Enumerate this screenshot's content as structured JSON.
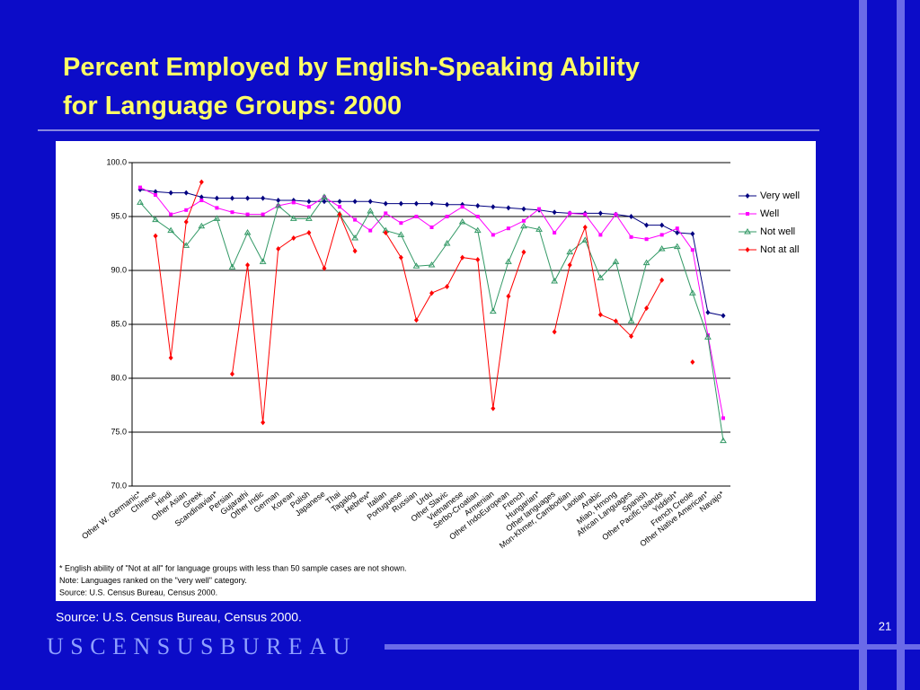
{
  "chart_data": {
    "type": "line",
    "title": "Percent Employed by English-Speaking Ability for Language Groups: 2000",
    "categories": [
      "Other W. Germanic*",
      "Chinese",
      "Hindi",
      "Other Asian",
      "Greek",
      "Scandinavian*",
      "Persian",
      "Gujarathi",
      "Other Indic",
      "German",
      "Korean",
      "Polish",
      "Japanese",
      "Thai",
      "Tagalog",
      "Hebrew*",
      "Italian",
      "Portuguese",
      "Russian",
      "Urdu",
      "Other Slavic",
      "Vietnamese",
      "Serbo-Croatian",
      "Armenian",
      "Other IndoEuropean",
      "French",
      "Hungarian*",
      "Other languages",
      "Mon-Khmer, Cambodian",
      "Laotian",
      "Arabic",
      "Miao, Hmong",
      "African Languages",
      "Spanish",
      "Other Pacific Islands",
      "Yiddish*",
      "French Creole",
      "Other Native American*",
      "Navajo*"
    ],
    "series": [
      {
        "name": "Very well",
        "color": "#000080",
        "marker": "diamond",
        "values": [
          97.5,
          97.3,
          97.2,
          97.2,
          96.8,
          96.7,
          96.7,
          96.7,
          96.7,
          96.5,
          96.5,
          96.4,
          96.4,
          96.4,
          96.4,
          96.4,
          96.2,
          96.2,
          96.2,
          96.2,
          96.1,
          96.1,
          96.0,
          95.9,
          95.8,
          95.7,
          95.6,
          95.4,
          95.3,
          95.3,
          95.3,
          95.2,
          95.0,
          94.2,
          94.2,
          93.5,
          93.4,
          86.1,
          85.8
        ]
      },
      {
        "name": "Well",
        "color": "#ff00ff",
        "marker": "square",
        "values": [
          97.7,
          97.0,
          95.2,
          95.6,
          96.5,
          95.8,
          95.4,
          95.2,
          95.2,
          96.0,
          96.3,
          95.9,
          96.8,
          95.9,
          94.7,
          93.7,
          95.3,
          94.4,
          95.0,
          94.0,
          95.0,
          95.9,
          95.0,
          93.3,
          93.9,
          94.6,
          95.7,
          93.5,
          95.3,
          95.2,
          93.3,
          95.2,
          93.1,
          92.9,
          93.3,
          93.9,
          91.9,
          84.0,
          76.3
        ]
      },
      {
        "name": "Not well",
        "color": "#339966",
        "marker": "triangle",
        "values": [
          96.3,
          94.7,
          93.7,
          92.3,
          94.1,
          94.8,
          90.3,
          93.5,
          90.8,
          96.0,
          94.8,
          94.8,
          96.8,
          95.2,
          93.0,
          95.5,
          93.7,
          93.3,
          90.4,
          90.5,
          92.5,
          94.5,
          93.7,
          86.2,
          90.8,
          94.1,
          93.8,
          89.0,
          91.7,
          92.8,
          89.3,
          90.8,
          85.3,
          90.7,
          92.0,
          92.2,
          87.9,
          83.8,
          74.2
        ]
      },
      {
        "name": "Not at all",
        "color": "#ff0000",
        "marker": "diamond",
        "values": [
          null,
          93.2,
          81.9,
          94.5,
          98.2,
          null,
          80.4,
          90.5,
          75.9,
          92.0,
          93.0,
          93.5,
          90.2,
          95.2,
          91.8,
          null,
          93.5,
          91.2,
          85.4,
          87.9,
          88.5,
          91.2,
          91.0,
          77.2,
          87.6,
          91.7,
          null,
          84.3,
          90.5,
          94.0,
          85.9,
          85.3,
          83.9,
          86.5,
          89.1,
          null,
          81.5,
          null,
          null
        ]
      }
    ],
    "ylim": [
      70,
      100
    ],
    "yticks": [
      {
        "value": 70,
        "label": "70.0"
      },
      {
        "value": 75,
        "label": "75.0"
      },
      {
        "value": 80,
        "label": "80.0"
      },
      {
        "value": 85,
        "label": "85.0"
      },
      {
        "value": 90,
        "label": "90.0"
      },
      {
        "value": 95,
        "label": "95.0"
      },
      {
        "value": 100,
        "label": "100.0"
      }
    ],
    "grid": true,
    "legend": "right",
    "notes": [
      "* English ability of \"Not at all\" for language groups with less than 50 sample cases are not shown.",
      "Note: Languages ranked on the \"very well\" category.",
      "Source: U.S. Census Bureau, Census 2000."
    ]
  },
  "source": "Source: U.S. Census Bureau, Census 2000.",
  "page_number": "21",
  "footer": "USCENSUSBUREAU"
}
